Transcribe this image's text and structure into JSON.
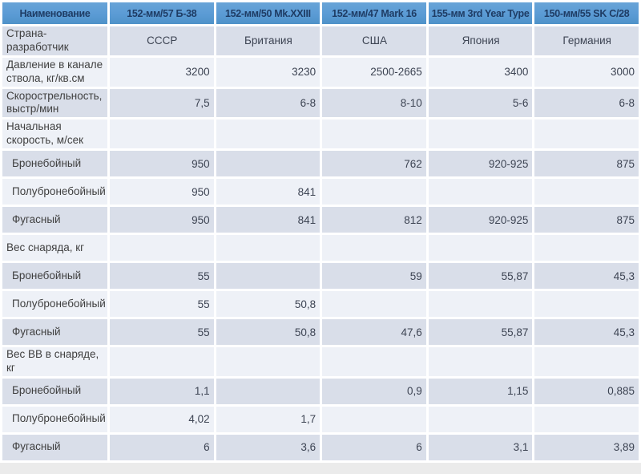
{
  "table": {
    "header": [
      "Наименование",
      "152-мм/57 Б-38",
      "152-мм/50 Mk.XXIII",
      "152-мм/47 Mark 16",
      "155-мм 3rd Year Type",
      "150-мм/55 SK C/28"
    ],
    "rows": [
      {
        "label": "Страна-разработчик",
        "indent": false,
        "align": "center",
        "band": "dark",
        "values": [
          "СССР",
          "Британия",
          "США",
          "Япония",
          "Германия"
        ]
      },
      {
        "label": "Давление в канале ствола, кг/кв.см",
        "indent": false,
        "align": "right",
        "band": "light",
        "values": [
          "3200",
          "3230",
          "2500-2665",
          "3400",
          "3000"
        ]
      },
      {
        "label": "Скорострельность, выстр/мин",
        "indent": false,
        "align": "right",
        "band": "dark",
        "values": [
          "7,5",
          "6-8",
          "8-10",
          "5-6",
          "6-8"
        ]
      },
      {
        "label": "Начальная скорость, м/сек",
        "indent": false,
        "align": "right",
        "band": "light",
        "values": [
          "",
          "",
          "",
          "",
          ""
        ]
      },
      {
        "label": "Бронебойный",
        "indent": true,
        "align": "right",
        "band": "dark",
        "values": [
          "950",
          "",
          "762",
          "920-925",
          "875"
        ]
      },
      {
        "label": "Полубронебойный",
        "indent": true,
        "align": "right",
        "band": "light",
        "values": [
          "950",
          "841",
          "",
          "",
          ""
        ]
      },
      {
        "label": "Фугасный",
        "indent": true,
        "align": "right",
        "band": "dark",
        "values": [
          "950",
          "841",
          "812",
          "920-925",
          "875"
        ]
      },
      {
        "label": "Вес снаряда, кг",
        "indent": false,
        "align": "right",
        "band": "light",
        "values": [
          "",
          "",
          "",
          "",
          ""
        ]
      },
      {
        "label": "Бронебойный",
        "indent": true,
        "align": "right",
        "band": "dark",
        "values": [
          "55",
          "",
          "59",
          "55,87",
          "45,3"
        ]
      },
      {
        "label": "Полубронебойный",
        "indent": true,
        "align": "right",
        "band": "light",
        "values": [
          "55",
          "50,8",
          "",
          "",
          ""
        ]
      },
      {
        "label": "Фугасный",
        "indent": true,
        "align": "right",
        "band": "dark",
        "values": [
          "55",
          "50,8",
          "47,6",
          "55,87",
          "45,3"
        ]
      },
      {
        "label": "Вес ВВ в снаряде, кг",
        "indent": false,
        "align": "right",
        "band": "light",
        "values": [
          "",
          "",
          "",
          "",
          ""
        ]
      },
      {
        "label": "Бронебойный",
        "indent": true,
        "align": "right",
        "band": "dark",
        "values": [
          "1,1",
          "",
          "0,9",
          "1,15",
          "0,885"
        ]
      },
      {
        "label": "Полубронебойный",
        "indent": true,
        "align": "right",
        "band": "light",
        "values": [
          "4,02",
          "1,7",
          "",
          "",
          ""
        ]
      },
      {
        "label": "Фугасный",
        "indent": true,
        "align": "right",
        "band": "dark",
        "values": [
          "6",
          "3,6",
          "6",
          "3,1",
          "3,89"
        ]
      }
    ]
  },
  "colors": {
    "header_bg": "#5B9BD5",
    "header_bg_top": "#68A4D7",
    "header_bg_bottom": "#4F92C8",
    "header_text": "#1E3C64",
    "band_light": "#EEF1F7",
    "band_dark": "#D9DEE9",
    "label_text": "#404040",
    "value_text": "#3D4453",
    "gap": "#FFFFFF",
    "page_bg": "#EBEBEB"
  }
}
